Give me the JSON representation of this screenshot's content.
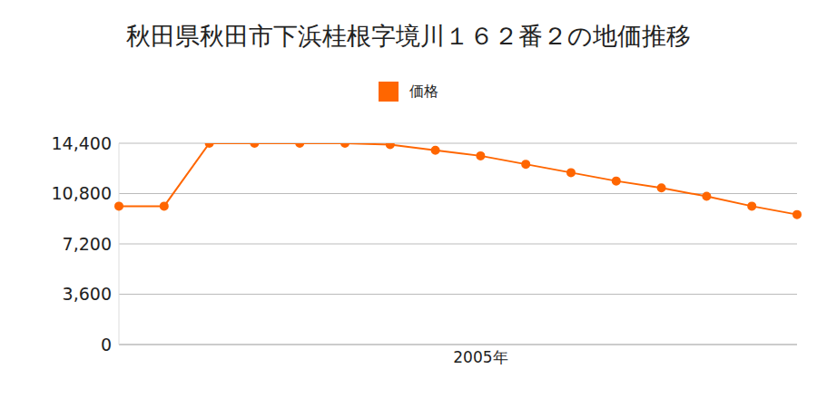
{
  "chart_data": {
    "type": "line",
    "title": "秋田県秋田市下浜桂根字境川１６２番２の地価推移",
    "categories": [
      null,
      null,
      null,
      null,
      null,
      null,
      null,
      null,
      "2005年",
      null,
      null,
      null,
      null,
      null,
      null,
      null
    ],
    "series": [
      {
        "name": "価格",
        "color": "#ff6600",
        "values": [
          9900,
          9900,
          14400,
          14400,
          14400,
          14400,
          14300,
          13900,
          13500,
          12900,
          12300,
          11700,
          11200,
          10600,
          9900,
          9300
        ],
        "marker": "circle"
      }
    ],
    "ylim": [
      0,
      14400
    ],
    "yticks": [
      {
        "value": 0,
        "label": "0"
      },
      {
        "value": 3600,
        "label": "3,600"
      },
      {
        "value": 7200,
        "label": "7,200"
      },
      {
        "value": 10800,
        "label": "10,800"
      },
      {
        "value": 14400,
        "label": "14,400"
      }
    ],
    "grid": true,
    "legend": "top"
  }
}
